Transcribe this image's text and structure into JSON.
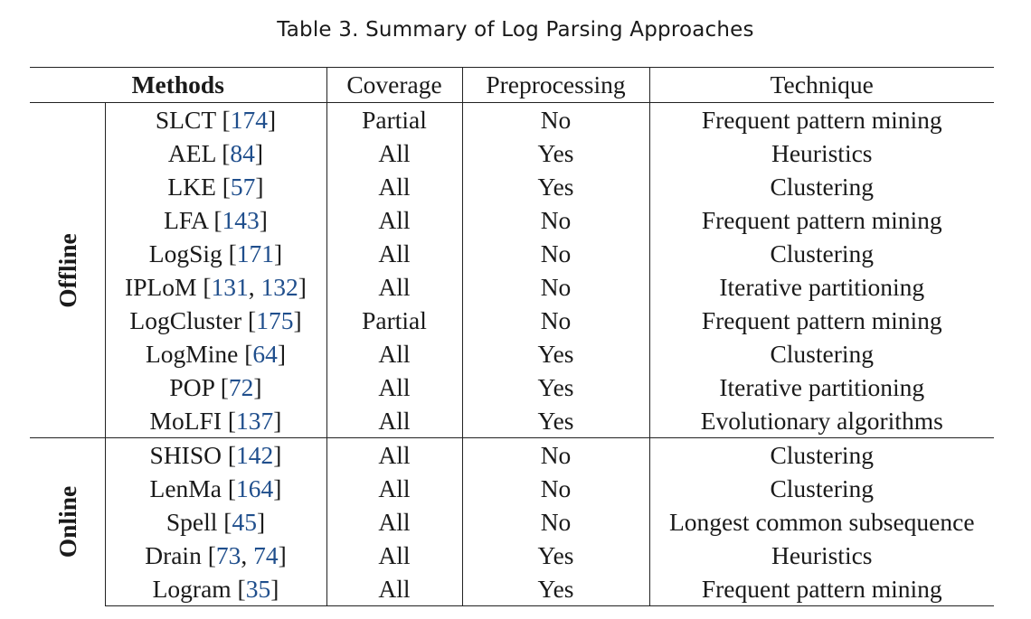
{
  "caption": "Table 3.  Summary of Log Parsing Approaches",
  "headers": {
    "methods": "Methods",
    "coverage": "Coverage",
    "preprocessing": "Preprocessing",
    "technique": "Technique"
  },
  "groups": [
    {
      "label": "Offline",
      "rows": [
        {
          "name": "SLCT",
          "refs": [
            "174"
          ],
          "coverage": "Partial",
          "preprocessing": "No",
          "technique": "Frequent pattern mining"
        },
        {
          "name": "AEL",
          "refs": [
            "84"
          ],
          "coverage": "All",
          "preprocessing": "Yes",
          "technique": "Heuristics"
        },
        {
          "name": "LKE",
          "refs": [
            "57"
          ],
          "coverage": "All",
          "preprocessing": "Yes",
          "technique": "Clustering"
        },
        {
          "name": "LFA",
          "refs": [
            "143"
          ],
          "coverage": "All",
          "preprocessing": "No",
          "technique": "Frequent pattern mining"
        },
        {
          "name": "LogSig",
          "refs": [
            "171"
          ],
          "coverage": "All",
          "preprocessing": "No",
          "technique": "Clustering"
        },
        {
          "name": "IPLoM",
          "refs": [
            "131",
            "132"
          ],
          "coverage": "All",
          "preprocessing": "No",
          "technique": "Iterative partitioning"
        },
        {
          "name": "LogCluster",
          "refs": [
            "175"
          ],
          "coverage": "Partial",
          "preprocessing": "No",
          "technique": "Frequent pattern mining"
        },
        {
          "name": "LogMine",
          "refs": [
            "64"
          ],
          "coverage": "All",
          "preprocessing": "Yes",
          "technique": "Clustering"
        },
        {
          "name": "POP",
          "refs": [
            "72"
          ],
          "coverage": "All",
          "preprocessing": "Yes",
          "technique": "Iterative partitioning"
        },
        {
          "name": "MoLFI",
          "refs": [
            "137"
          ],
          "coverage": "All",
          "preprocessing": "Yes",
          "technique": "Evolutionary algorithms"
        }
      ]
    },
    {
      "label": "Online",
      "rows": [
        {
          "name": "SHISO",
          "refs": [
            "142"
          ],
          "coverage": "All",
          "preprocessing": "No",
          "technique": "Clustering"
        },
        {
          "name": "LenMa",
          "refs": [
            "164"
          ],
          "coverage": "All",
          "preprocessing": "No",
          "technique": "Clustering"
        },
        {
          "name": "Spell",
          "refs": [
            "45"
          ],
          "coverage": "All",
          "preprocessing": "No",
          "technique": "Longest common subsequence"
        },
        {
          "name": "Drain",
          "refs": [
            "73",
            "74"
          ],
          "coverage": "All",
          "preprocessing": "Yes",
          "technique": "Heuristics"
        },
        {
          "name": "Logram",
          "refs": [
            "35"
          ],
          "coverage": "All",
          "preprocessing": "Yes",
          "technique": "Frequent pattern mining"
        }
      ]
    }
  ]
}
